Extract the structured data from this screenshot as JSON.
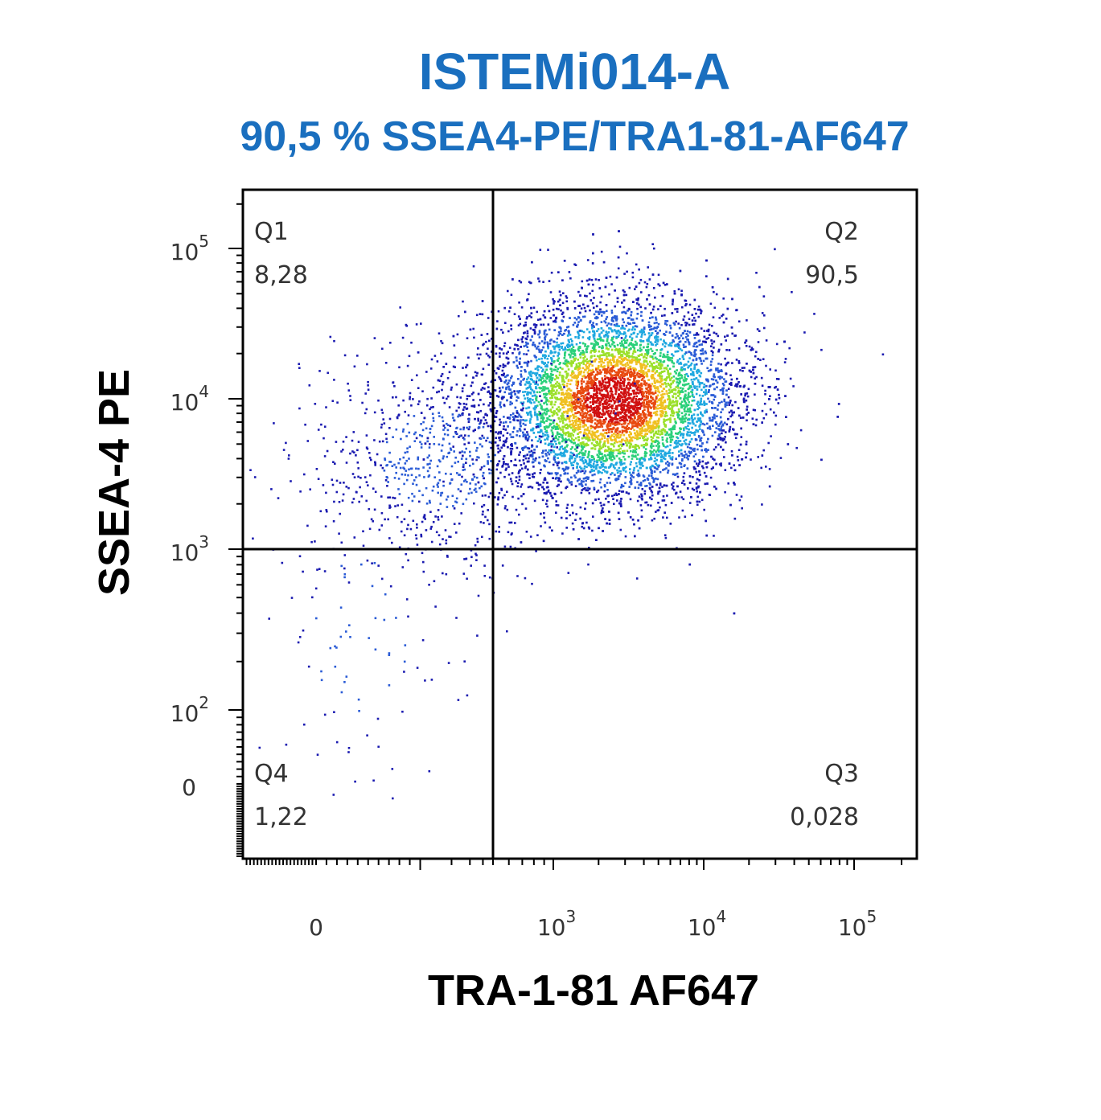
{
  "chart_data": {
    "type": "scatter",
    "title": "ISTEMi014-A",
    "subtitle": "90,5 % SSEA4-PE/TRA1-81-AF647",
    "xlabel": "TRA-1-81 AF647",
    "ylabel": "SSEA-4 PE",
    "x_scale": "biexponential",
    "y_scale": "biexponential",
    "x_ticks": [
      {
        "value": 0,
        "base": "0",
        "exp": ""
      },
      {
        "value": 1000,
        "base": "10",
        "exp": "3"
      },
      {
        "value": 10000,
        "base": "10",
        "exp": "4"
      },
      {
        "value": 100000,
        "base": "10",
        "exp": "5"
      }
    ],
    "y_ticks": [
      {
        "value": 0,
        "base": "0",
        "exp": ""
      },
      {
        "value": 100,
        "base": "10",
        "exp": "2"
      },
      {
        "value": 1000,
        "base": "10",
        "exp": "3"
      },
      {
        "value": 10000,
        "base": "10",
        "exp": "4"
      },
      {
        "value": 100000,
        "base": "10",
        "exp": "5"
      }
    ],
    "quadrant_gate": {
      "x": 500,
      "y": 1000
    },
    "quadrants": [
      {
        "name": "Q1",
        "value": "8,28"
      },
      {
        "name": "Q2",
        "value": "90,5"
      },
      {
        "name": "Q3",
        "value": "0,028"
      },
      {
        "name": "Q4",
        "value": "1,22"
      }
    ],
    "populations": [
      {
        "fraction": 0.905,
        "center_x": 2500,
        "center_y": 10000
      },
      {
        "fraction": 0.0828,
        "center_x": 150,
        "center_y": 4000
      },
      {
        "fraction": 0.0122,
        "center_x": 40,
        "center_y": 300
      }
    ],
    "colormap": [
      "#1a1ab0",
      "#2a5bd6",
      "#1fa8e0",
      "#2ad07a",
      "#9be02a",
      "#f0c020",
      "#e84a10",
      "#d01010"
    ],
    "grid": false,
    "legend": "none"
  }
}
